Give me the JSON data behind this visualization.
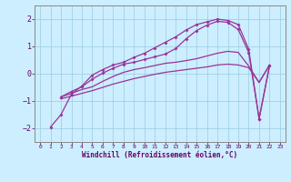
{
  "xlabel": "Windchill (Refroidissement éolien,°C)",
  "bg_color": "#cceeff",
  "grid_color": "#99ccdd",
  "line_color": "#993399",
  "xlim": [
    -0.5,
    23.5
  ],
  "ylim": [
    -2.5,
    2.5
  ],
  "yticks": [
    -2,
    -1,
    0,
    1,
    2
  ],
  "xticks": [
    0,
    1,
    2,
    3,
    4,
    5,
    6,
    7,
    8,
    9,
    10,
    11,
    12,
    13,
    14,
    15,
    16,
    17,
    18,
    19,
    20,
    21,
    22,
    23
  ],
  "line1_x": [
    1,
    2,
    3,
    4,
    5,
    6,
    7,
    8,
    9,
    10,
    11,
    12,
    13,
    14,
    15,
    16,
    17,
    18,
    19,
    20,
    21,
    22
  ],
  "line1_y": [
    -1.95,
    -1.5,
    -0.75,
    -0.45,
    -0.05,
    0.15,
    0.32,
    0.42,
    0.6,
    0.75,
    0.95,
    1.15,
    1.35,
    1.6,
    1.8,
    1.9,
    2.0,
    1.95,
    1.8,
    0.9,
    -1.65,
    0.3
  ],
  "line2_x": [
    2,
    3,
    4,
    5,
    6,
    7,
    8,
    9,
    10,
    11,
    12,
    13,
    14,
    15,
    16,
    17,
    18,
    19,
    20,
    21,
    22
  ],
  "line2_y": [
    -0.85,
    -0.65,
    -0.48,
    -0.2,
    0.02,
    0.2,
    0.35,
    0.42,
    0.52,
    0.62,
    0.72,
    0.92,
    1.28,
    1.58,
    1.78,
    1.92,
    1.88,
    1.62,
    0.78,
    -1.65,
    0.3
  ],
  "line3_x": [
    2,
    3,
    4,
    5,
    6,
    7,
    8,
    9,
    10,
    11,
    12,
    13,
    14,
    15,
    16,
    17,
    18,
    19,
    20,
    21,
    22
  ],
  "line3_y": [
    -0.85,
    -0.72,
    -0.58,
    -0.48,
    -0.28,
    -0.1,
    0.05,
    0.15,
    0.22,
    0.3,
    0.38,
    0.42,
    0.48,
    0.55,
    0.65,
    0.75,
    0.82,
    0.78,
    0.28,
    -0.32,
    0.32
  ],
  "line4_x": [
    2,
    3,
    4,
    5,
    6,
    7,
    8,
    9,
    10,
    11,
    12,
    13,
    14,
    15,
    16,
    17,
    18,
    19,
    20,
    21,
    22
  ],
  "line4_y": [
    -0.92,
    -0.82,
    -0.72,
    -0.62,
    -0.5,
    -0.38,
    -0.28,
    -0.18,
    -0.1,
    -0.02,
    0.05,
    0.1,
    0.15,
    0.2,
    0.25,
    0.32,
    0.35,
    0.32,
    0.22,
    -0.32,
    0.32
  ]
}
